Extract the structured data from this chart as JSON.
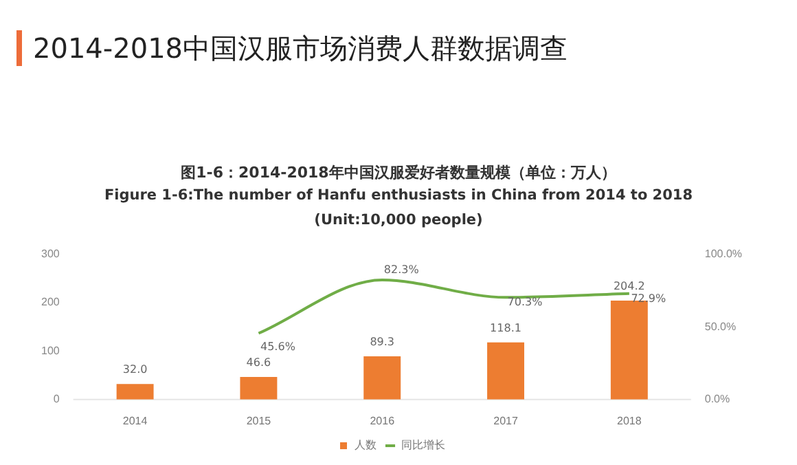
{
  "chart_data": {
    "type": "bar",
    "title": "2014-2018中国汉服市场消费人群数据调查",
    "subtitle": "图1-6：2014-2018年中国汉服爱好者数量规模（单位：万人）",
    "annotations": [
      "Figure 1-6:The number of Hanfu enthusiasts in China from 2014 to 2018",
      "(Unit:10,000 people)"
    ],
    "categories": [
      "2014",
      "2015",
      "2016",
      "2017",
      "2018"
    ],
    "series": [
      {
        "name": "人数",
        "color": "#ed7d31",
        "values": [
          32.0,
          46.6,
          89.3,
          118.1,
          204.2
        ],
        "value_labels": [
          "32.0",
          "46.6",
          "89.3",
          "118.1",
          "204.2"
        ]
      },
      {
        "name": "同比增长",
        "type": "line",
        "axis": "y2",
        "color": "#70ad47",
        "values": [
          null,
          45.6,
          82.3,
          70.3,
          72.9
        ],
        "value_labels": [
          null,
          "45.6%",
          "82.3%",
          "70.3%",
          "72.9%"
        ]
      }
    ],
    "ylim": [
      0,
      300
    ],
    "yticks": [
      0,
      100,
      200,
      300
    ],
    "y2lim": [
      0,
      100
    ],
    "y2ticks": [
      {
        "value": 0,
        "label": "0.0%"
      },
      {
        "value": 50,
        "label": "50.0%"
      },
      {
        "value": 100,
        "label": "100.0%"
      }
    ],
    "grid": false,
    "legend": "bottom",
    "marker": "none"
  }
}
